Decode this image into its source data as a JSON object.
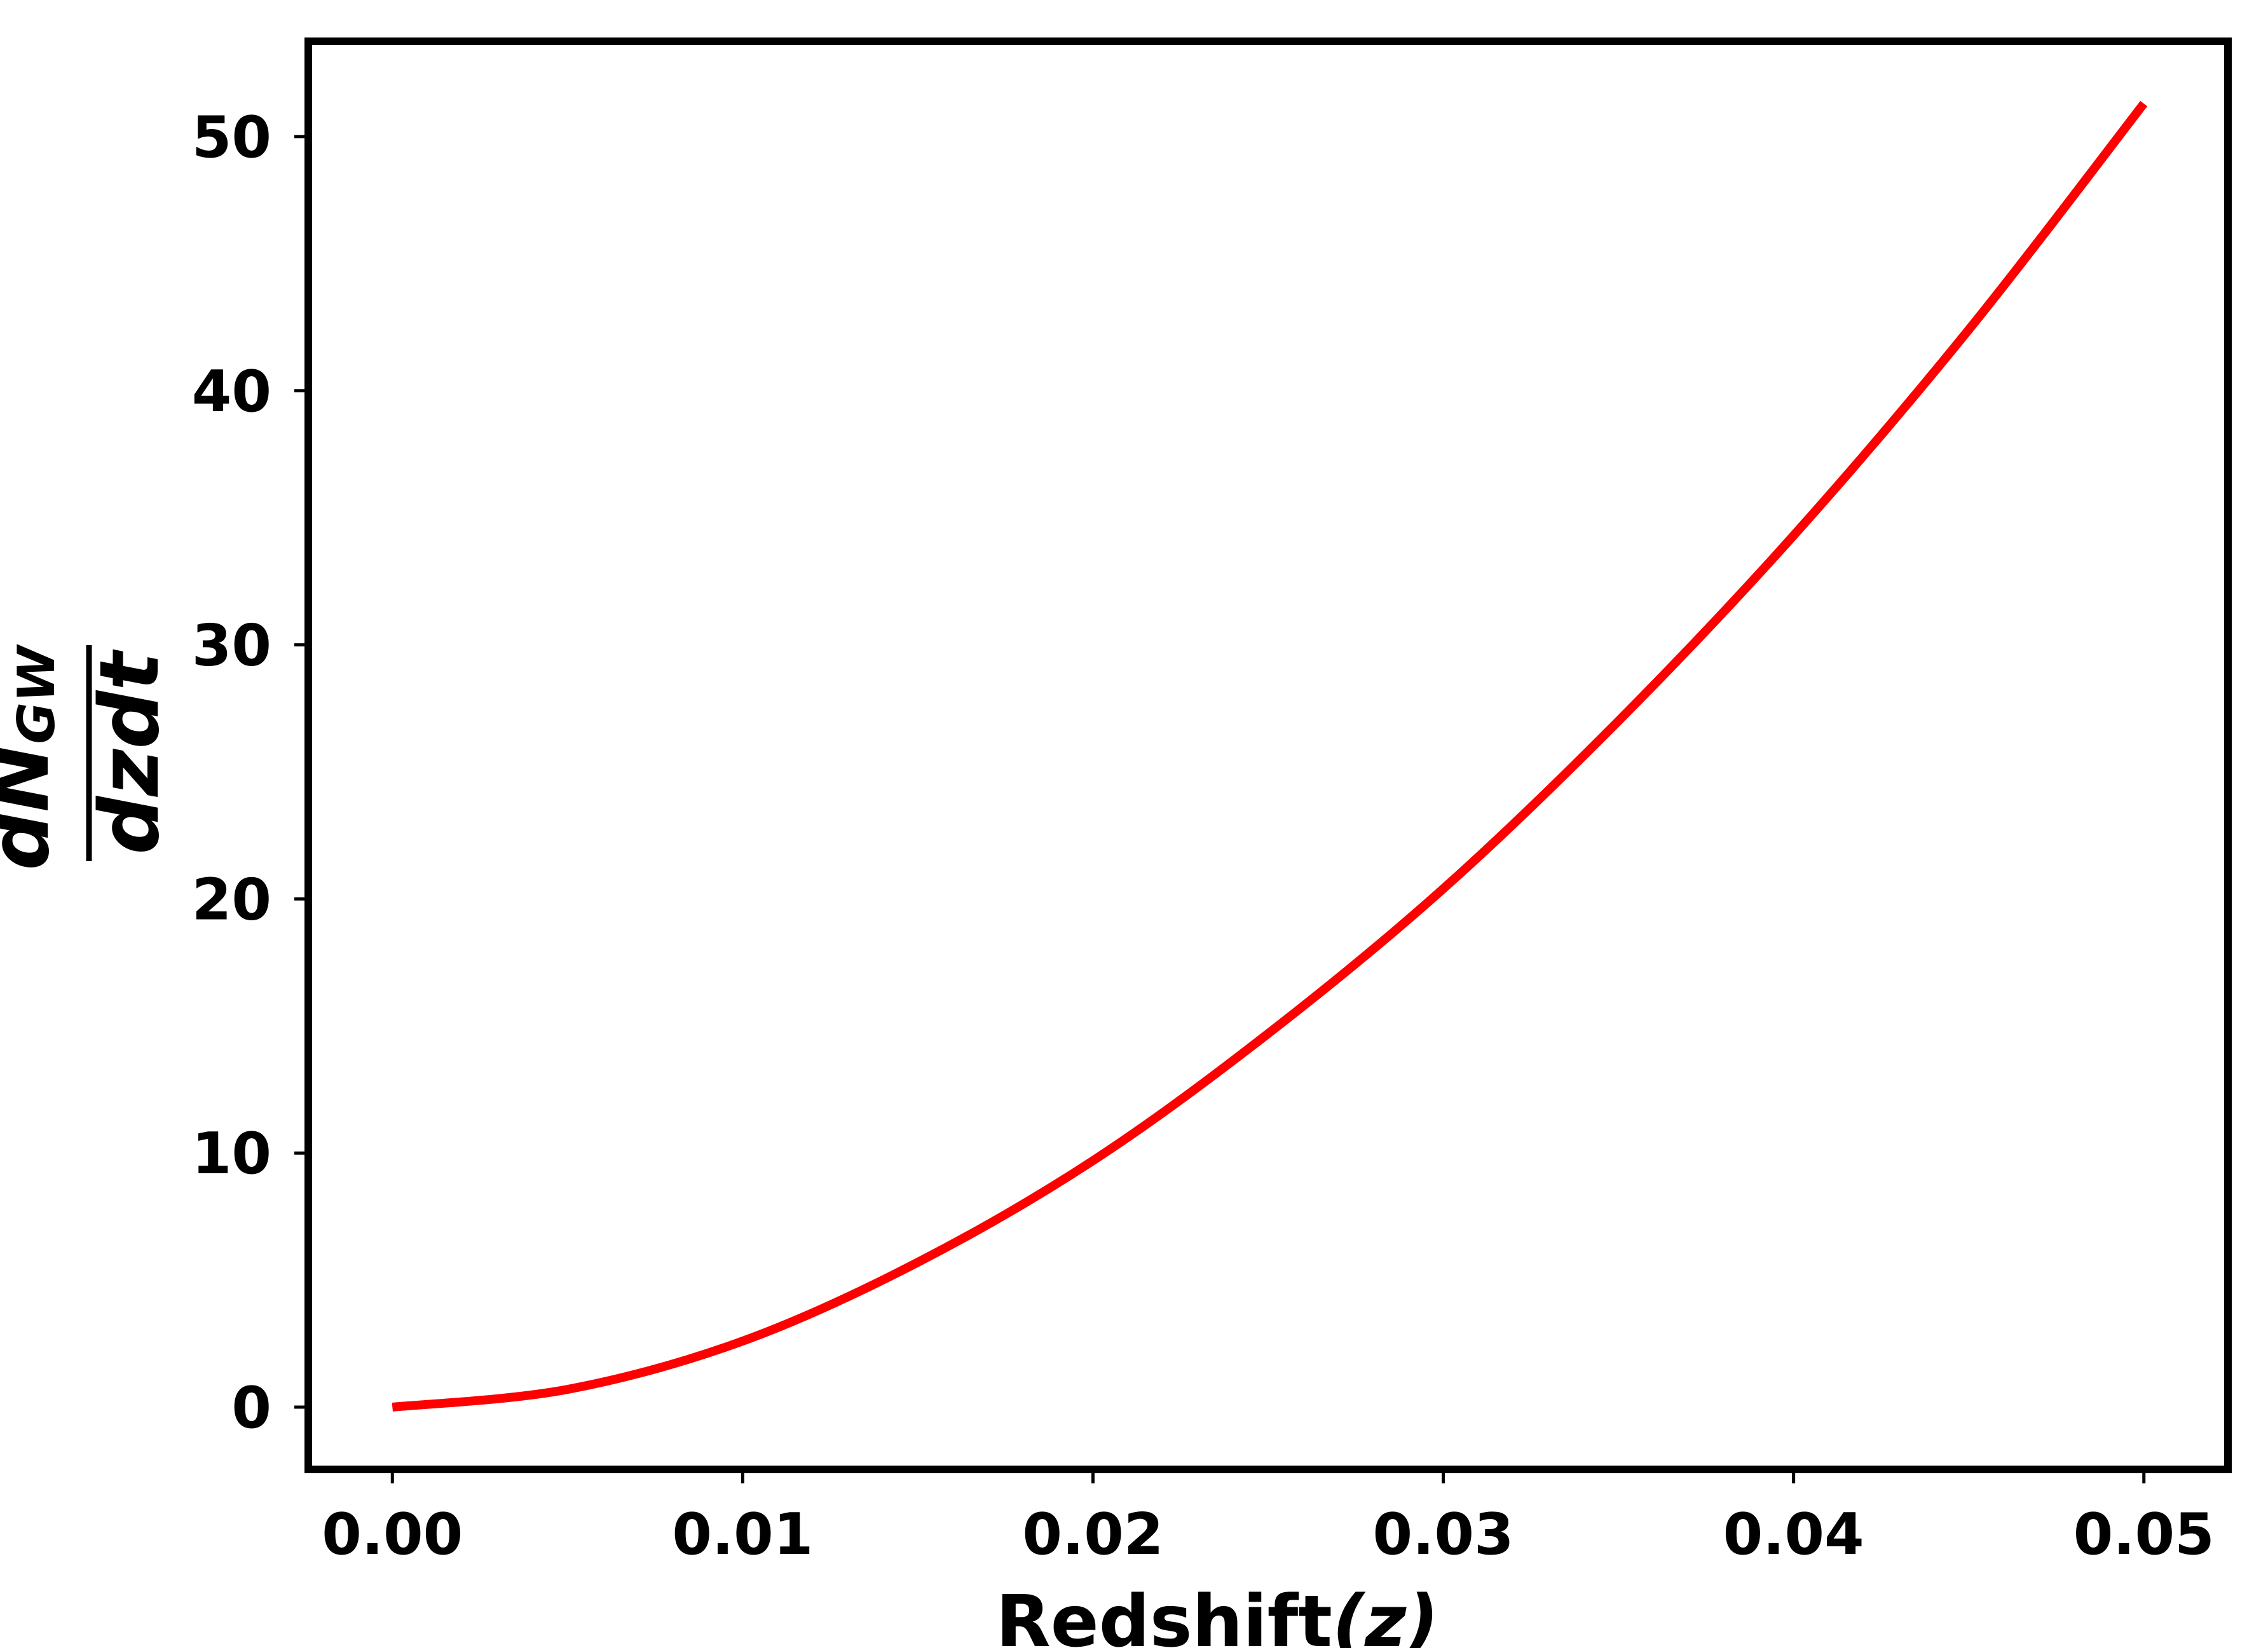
{
  "chart_data": {
    "type": "line",
    "title": "",
    "xlabel": {
      "text": "Redshift",
      "symbol": "(z)"
    },
    "ylabel": {
      "numerator": "dN",
      "numerator_subscript": "GW",
      "denominator": "dzdt"
    },
    "xlim": [
      -0.0024,
      0.0524
    ],
    "ylim": [
      -2.45,
      53.75
    ],
    "xticks": [
      {
        "value": 0.0,
        "label": "0.00"
      },
      {
        "value": 0.01,
        "label": "0.01"
      },
      {
        "value": 0.02,
        "label": "0.02"
      },
      {
        "value": 0.03,
        "label": "0.03"
      },
      {
        "value": 0.04,
        "label": "0.04"
      },
      {
        "value": 0.05,
        "label": "0.05"
      }
    ],
    "yticks": [
      {
        "value": 0,
        "label": "0"
      },
      {
        "value": 10,
        "label": "10"
      },
      {
        "value": 20,
        "label": "20"
      },
      {
        "value": 30,
        "label": "30"
      },
      {
        "value": 40,
        "label": "40"
      },
      {
        "value": 50,
        "label": "50"
      }
    ],
    "grid": false,
    "series": [
      {
        "color": "#ff0000",
        "x": [
          0.0,
          0.005,
          0.01,
          0.015,
          0.02,
          0.025,
          0.03,
          0.035,
          0.04,
          0.045,
          0.05
        ],
        "y": [
          0.0,
          0.7,
          2.6,
          5.7,
          9.7,
          14.7,
          20.4,
          27.0,
          34.3,
          42.4,
          51.3
        ]
      }
    ]
  }
}
